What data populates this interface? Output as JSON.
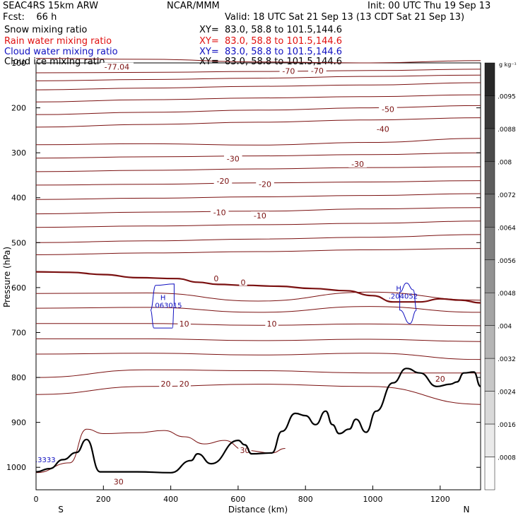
{
  "header": {
    "model": "SEAC4RS 15km ARW",
    "org": "NCAR/MMM",
    "init": "Init: 00 UTC Thu 19 Sep 13",
    "fcst": "Fcst:    66 h",
    "valid": "Valid: 18 UTC Sat 21 Sep 13 (13 CDT Sat 21 Sep 13)",
    "fields": [
      {
        "label": "Snow mixing ratio",
        "xy": "XY=  83.0, 58.8 to 101.5,144.6",
        "color": "#000000"
      },
      {
        "label": "Rain water mixing ratio",
        "xy": "XY=  83.0, 58.8 to 101.5,144.6",
        "color": "#e01010"
      },
      {
        "label": "Cloud water mixing ratio",
        "xy": "XY=  83.0, 58.8 to 101.5,144.6",
        "color": "#1010c0"
      },
      {
        "label": "Cloud ice mixing ratio",
        "xy": "XY=  83.0, 58.8 to 101.5,144.6",
        "color": "#000000"
      }
    ]
  },
  "chart_data": {
    "type": "line",
    "xlabel": "Distance (km)",
    "ylabel": "Pressure (hPa)",
    "xlim": [
      0,
      1320
    ],
    "ylim": [
      1050,
      100
    ],
    "xticks": [
      0,
      200,
      400,
      600,
      800,
      1000,
      1200
    ],
    "yticks": [
      100,
      200,
      300,
      400,
      500,
      600,
      700,
      800,
      900,
      1000
    ],
    "x_end_labels": {
      "left": "S",
      "right": "N"
    },
    "colorbar": {
      "unit": "g kg⁻¹",
      "labels": [
        ".0095",
        ".0088",
        ".008",
        ".0072",
        ".0064",
        ".0056",
        ".0048",
        ".004",
        ".0032",
        ".0024",
        ".0016",
        ".0008"
      ]
    },
    "isotherm_labels": [
      {
        "text": "-77.04",
        "x": 240,
        "p": 109
      },
      {
        "text": "-70",
        "x": 750,
        "p": 118
      },
      {
        "text": "-70",
        "x": 835,
        "p": 117
      },
      {
        "text": "-50",
        "x": 1045,
        "p": 203
      },
      {
        "text": "-40",
        "x": 1030,
        "p": 247
      },
      {
        "text": "-30",
        "x": 585,
        "p": 313
      },
      {
        "text": "-30",
        "x": 955,
        "p": 325
      },
      {
        "text": "-20",
        "x": 555,
        "p": 363
      },
      {
        "text": "-20",
        "x": 680,
        "p": 370
      },
      {
        "text": "-10",
        "x": 545,
        "p": 433
      },
      {
        "text": "-10",
        "x": 665,
        "p": 440
      },
      {
        "text": "0",
        "x": 535,
        "p": 580
      },
      {
        "text": "0",
        "x": 615,
        "p": 588
      },
      {
        "text": "10",
        "x": 440,
        "p": 680
      },
      {
        "text": "10",
        "x": 700,
        "p": 680
      },
      {
        "text": "20",
        "x": 385,
        "p": 814
      },
      {
        "text": "20",
        "x": 440,
        "p": 814
      },
      {
        "text": "20",
        "x": 1200,
        "p": 803
      },
      {
        "text": "30",
        "x": 620,
        "p": 962
      },
      {
        "text": "30",
        "x": 245,
        "p": 1032
      }
    ],
    "isotherms": [
      {
        "p": [
          90,
          92,
          98,
          100,
          95
        ]
      },
      {
        "p": [
          122,
          121,
          119,
          117,
          114
        ]
      },
      {
        "p": [
          140,
          137,
          134,
          130,
          127
        ]
      },
      {
        "p": [
          160,
          156,
          152,
          149,
          144
        ]
      },
      {
        "p": [
          187,
          182,
          178,
          175,
          171
        ]
      },
      {
        "p": [
          215,
          210,
          205,
          200,
          195
        ]
      },
      {
        "p": [
          243,
          237,
          232,
          227,
          222
        ]
      },
      {
        "p": [
          282,
          280,
          283,
          277,
          268
        ]
      },
      {
        "p": [
          312,
          309,
          307,
          304,
          300
        ]
      },
      {
        "p": [
          342,
          339,
          336,
          333,
          331
        ]
      },
      {
        "p": [
          372,
          370,
          367,
          365,
          362
        ]
      },
      {
        "p": [
          404,
          401,
          398,
          395,
          391
        ]
      },
      {
        "p": [
          436,
          432,
          430,
          425,
          422
        ]
      },
      {
        "p": [
          466,
          463,
          460,
          457,
          452
        ]
      },
      {
        "p": [
          500,
          496,
          492,
          488,
          482
        ]
      },
      {
        "p": [
          527,
          523,
          520,
          516,
          513
        ]
      },
      {
        "p": [
          613,
          612,
          630,
          610,
          628
        ]
      },
      {
        "p": [
          646,
          644,
          655,
          642,
          655
        ]
      },
      {
        "p": [
          680,
          680,
          684,
          681,
          685
        ]
      },
      {
        "p": [
          714,
          714,
          718,
          715,
          720
        ]
      },
      {
        "p": [
          748,
          746,
          750,
          746,
          760
        ]
      },
      {
        "p": [
          800,
          783,
          785,
          790,
          790
        ]
      },
      {
        "p": [
          838,
          820,
          815,
          820,
          860
        ]
      }
    ],
    "freezing_level": [
      [
        0,
        565
      ],
      [
        100,
        566
      ],
      [
        200,
        571
      ],
      [
        300,
        578
      ],
      [
        420,
        580
      ],
      [
        480,
        588
      ],
      [
        540,
        593
      ],
      [
        620,
        595
      ],
      [
        720,
        597
      ],
      [
        820,
        602
      ],
      [
        920,
        607
      ],
      [
        1000,
        618
      ],
      [
        1060,
        632
      ],
      [
        1140,
        632
      ],
      [
        1200,
        625
      ],
      [
        1260,
        628
      ],
      [
        1320,
        634
      ]
    ],
    "low_isotherm_30": [
      [
        0,
        1012
      ],
      [
        100,
        990
      ],
      [
        150,
        915
      ],
      [
        200,
        925
      ],
      [
        300,
        923
      ],
      [
        380,
        918
      ],
      [
        440,
        932
      ],
      [
        500,
        948
      ],
      [
        560,
        940
      ],
      [
        620,
        962
      ],
      [
        700,
        968
      ],
      [
        740,
        958
      ]
    ],
    "terrain": [
      [
        0,
        1010
      ],
      [
        40,
        1003
      ],
      [
        80,
        983
      ],
      [
        120,
        967
      ],
      [
        150,
        938
      ],
      [
        190,
        1010
      ],
      [
        300,
        1010
      ],
      [
        400,
        1012
      ],
      [
        460,
        985
      ],
      [
        480,
        970
      ],
      [
        520,
        992
      ],
      [
        600,
        940
      ],
      [
        620,
        950
      ],
      [
        640,
        970
      ],
      [
        700,
        968
      ],
      [
        730,
        920
      ],
      [
        770,
        880
      ],
      [
        800,
        885
      ],
      [
        830,
        905
      ],
      [
        860,
        875
      ],
      [
        880,
        905
      ],
      [
        900,
        925
      ],
      [
        930,
        915
      ],
      [
        950,
        893
      ],
      [
        980,
        922
      ],
      [
        1010,
        875
      ],
      [
        1060,
        812
      ],
      [
        1100,
        780
      ],
      [
        1140,
        790
      ],
      [
        1190,
        820
      ],
      [
        1230,
        815
      ],
      [
        1250,
        810
      ],
      [
        1270,
        790
      ],
      [
        1300,
        788
      ],
      [
        1320,
        820
      ]
    ],
    "cloud_water": [
      {
        "h_label": "H",
        "value": ".063015",
        "x": 390,
        "p": 640,
        "outline": [
          [
            355,
            595
          ],
          [
            410,
            592
          ],
          [
            410,
            640
          ],
          [
            405,
            690
          ],
          [
            350,
            690
          ],
          [
            340,
            650
          ]
        ]
      },
      {
        "h_label": "H",
        "value": ".204052",
        "x": 1090,
        "p": 620,
        "outline": [
          [
            1100,
            590
          ],
          [
            1120,
            605
          ],
          [
            1130,
            650
          ],
          [
            1110,
            680
          ],
          [
            1080,
            650
          ],
          [
            1080,
            610
          ]
        ]
      }
    ],
    "edge_value": ".3333"
  }
}
